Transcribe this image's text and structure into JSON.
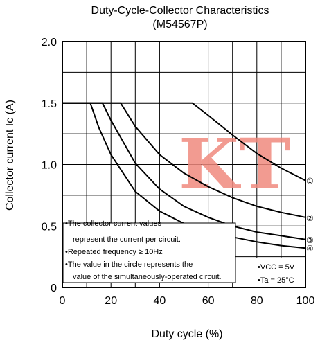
{
  "chart_data": {
    "type": "line",
    "title": "Duty-Cycle-Collector Characteristics",
    "subtitle": "(M54567P)",
    "xlabel": "Duty cycle  (%)",
    "ylabel": "Collector current  Ic (A)",
    "xlim": [
      0,
      100
    ],
    "ylim": [
      0,
      2.0
    ],
    "x_ticks": [
      "0",
      "20",
      "40",
      "60",
      "80",
      "100"
    ],
    "y_ticks": [
      "0",
      "0.5",
      "1.0",
      "1.5",
      "2.0"
    ],
    "grid": true,
    "series": [
      {
        "name": "①",
        "x": [
          0,
          53.5,
          60,
          70,
          80,
          90,
          100
        ],
        "y": [
          1.5,
          1.5,
          1.4,
          1.24,
          1.09,
          0.97,
          0.87
        ]
      },
      {
        "name": "②",
        "x": [
          0,
          24,
          30,
          40,
          50,
          60,
          70,
          80,
          90,
          100
        ],
        "y": [
          1.5,
          1.5,
          1.31,
          1.08,
          0.93,
          0.82,
          0.73,
          0.66,
          0.61,
          0.57
        ]
      },
      {
        "name": "③",
        "x": [
          0,
          16.5,
          20,
          30,
          40,
          50,
          60,
          70,
          80,
          90,
          100
        ],
        "y": [
          1.5,
          1.5,
          1.36,
          1.01,
          0.8,
          0.66,
          0.57,
          0.5,
          0.45,
          0.42,
          0.39
        ]
      },
      {
        "name": "④",
        "x": [
          0,
          11.5,
          15,
          20,
          30,
          40,
          50,
          60,
          70,
          80,
          90,
          100
        ],
        "y": [
          1.5,
          1.5,
          1.3,
          1.08,
          0.78,
          0.62,
          0.52,
          0.45,
          0.41,
          0.37,
          0.34,
          0.32
        ]
      }
    ],
    "notes": [
      "•The collector current values",
      "represent the current per circuit.",
      "•Repeated frequency ≥ 10Hz",
      "•The value in the circle represents the",
      "value of the simultaneously-operated circuit."
    ],
    "conditions": [
      "•VCC = 5V",
      "•Ta = 25°C"
    ],
    "watermark": "KT",
    "watermark_color": "#f08a7e"
  }
}
